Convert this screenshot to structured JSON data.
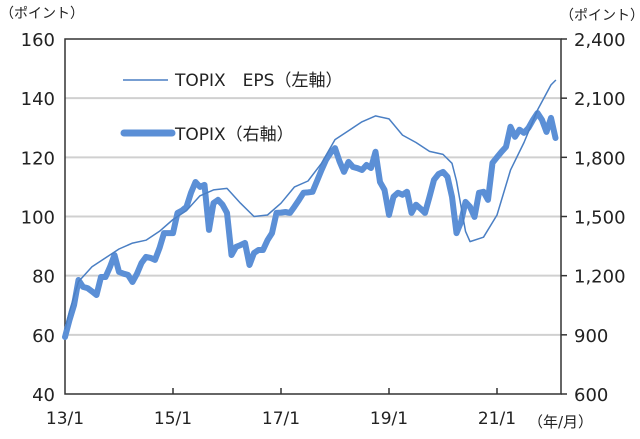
{
  "chart_data": {
    "type": "line",
    "title": "",
    "left_axis": {
      "unit_label": "（ポイント）",
      "ylim": [
        40,
        160
      ],
      "ticks": [
        "40",
        "60",
        "80",
        "100",
        "120",
        "140",
        "160"
      ]
    },
    "right_axis": {
      "unit_label": "（ポイント）",
      "ylim": [
        600,
        2400
      ],
      "ticks": [
        "600",
        "900",
        "1,200",
        "1,500",
        "1,800",
        "2,100",
        "2,400"
      ]
    },
    "x_axis": {
      "unit_label": "（年/月）",
      "ticks": [
        "13/1",
        "15/1",
        "17/1",
        "19/1",
        "21/1"
      ],
      "range": [
        "13/1",
        "22/3"
      ]
    },
    "grid": true,
    "legend": {
      "placement": "top-left",
      "entries": [
        "TOPIX　EPS（左軸）",
        "TOPIX（右軸）"
      ]
    },
    "series": [
      {
        "name": "TOPIX　EPS（左軸）",
        "axis": "left",
        "color": "#4a7fc4",
        "points": [
          [
            "13/1",
            62
          ],
          [
            "13/2",
            68
          ],
          [
            "13/4",
            78
          ],
          [
            "13/7",
            83
          ],
          [
            "13/10",
            86
          ],
          [
            "14/1",
            89
          ],
          [
            "14/4",
            91
          ],
          [
            "14/7",
            92
          ],
          [
            "14/10",
            95
          ],
          [
            "15/1",
            99
          ],
          [
            "15/4",
            102
          ],
          [
            "15/7",
            107
          ],
          [
            "15/10",
            109
          ],
          [
            "16/1",
            109.5
          ],
          [
            "16/4",
            104.5
          ],
          [
            "16/7",
            100
          ],
          [
            "16/10",
            100.5
          ],
          [
            "17/1",
            104.5
          ],
          [
            "17/4",
            110
          ],
          [
            "17/7",
            112
          ],
          [
            "17/10",
            118
          ],
          [
            "18/1",
            126
          ],
          [
            "18/4",
            129
          ],
          [
            "18/7",
            132
          ],
          [
            "18/10",
            134
          ],
          [
            "19/1",
            133
          ],
          [
            "19/4",
            127.5
          ],
          [
            "19/7",
            125
          ],
          [
            "19/10",
            122
          ],
          [
            "20/1",
            121
          ],
          [
            "20/3",
            118
          ],
          [
            "20/4",
            112
          ],
          [
            "20/6",
            95
          ],
          [
            "20/7",
            91.5
          ],
          [
            "20/10",
            93
          ],
          [
            "21/1",
            100.5
          ],
          [
            "21/4",
            115.7
          ],
          [
            "21/7",
            125
          ],
          [
            "21/10",
            136
          ],
          [
            "22/1",
            144.5
          ],
          [
            "22/2",
            146
          ]
        ]
      },
      {
        "name": "TOPIX（右軸）",
        "axis": "right",
        "color": "#5b8fd6",
        "points": [
          [
            "13/1",
            889
          ],
          [
            "13/2",
            975
          ],
          [
            "13/3",
            1050
          ],
          [
            "13/4",
            1178
          ],
          [
            "13/5",
            1143
          ],
          [
            "13/6",
            1137
          ],
          [
            "13/7",
            1120
          ],
          [
            "13/8",
            1102
          ],
          [
            "13/9",
            1193
          ],
          [
            "13/10",
            1193
          ],
          [
            "13/11",
            1244
          ],
          [
            "13/12",
            1305
          ],
          [
            "14/1",
            1219
          ],
          [
            "14/2",
            1210
          ],
          [
            "14/3",
            1204
          ],
          [
            "14/4",
            1168
          ],
          [
            "14/5",
            1210
          ],
          [
            "14/6",
            1264
          ],
          [
            "14/7",
            1295
          ],
          [
            "14/8",
            1290
          ],
          [
            "14/9",
            1280
          ],
          [
            "14/10",
            1340
          ],
          [
            "14/11",
            1416
          ],
          [
            "14/12",
            1416
          ],
          [
            "15/1",
            1416
          ],
          [
            "15/2",
            1518
          ],
          [
            "15/3",
            1530
          ],
          [
            "15/4",
            1549
          ],
          [
            "15/5",
            1620
          ],
          [
            "15/6",
            1675
          ],
          [
            "15/7",
            1650
          ],
          [
            "15/8",
            1660
          ],
          [
            "15/9",
            1432
          ],
          [
            "15/10",
            1568
          ],
          [
            "15/11",
            1584
          ],
          [
            "15/12",
            1560
          ],
          [
            "16/1",
            1518
          ],
          [
            "16/2",
            1305
          ],
          [
            "16/3",
            1346
          ],
          [
            "16/4",
            1355
          ],
          [
            "16/5",
            1366
          ],
          [
            "16/6",
            1254
          ],
          [
            "16/7",
            1315
          ],
          [
            "16/8",
            1330
          ],
          [
            "16/9",
            1330
          ],
          [
            "16/10",
            1380
          ],
          [
            "16/11",
            1416
          ],
          [
            "16/12",
            1518
          ],
          [
            "17/1",
            1520
          ],
          [
            "17/2",
            1523
          ],
          [
            "17/3",
            1518
          ],
          [
            "17/4",
            1550
          ],
          [
            "17/5",
            1584
          ],
          [
            "17/6",
            1620
          ],
          [
            "17/7",
            1622
          ],
          [
            "17/8",
            1625
          ],
          [
            "17/9",
            1680
          ],
          [
            "17/10",
            1736
          ],
          [
            "17/11",
            1787
          ],
          [
            "17/12",
            1822
          ],
          [
            "18/1",
            1847
          ],
          [
            "18/2",
            1780
          ],
          [
            "18/3",
            1726
          ],
          [
            "18/4",
            1777
          ],
          [
            "18/5",
            1751
          ],
          [
            "18/6",
            1745
          ],
          [
            "18/7",
            1736
          ],
          [
            "18/8",
            1761
          ],
          [
            "18/9",
            1746
          ],
          [
            "18/10",
            1828
          ],
          [
            "18/11",
            1675
          ],
          [
            "18/12",
            1635
          ],
          [
            "19/1",
            1508
          ],
          [
            "19/2",
            1600
          ],
          [
            "19/3",
            1620
          ],
          [
            "19/4",
            1610
          ],
          [
            "19/5",
            1625
          ],
          [
            "19/6",
            1518
          ],
          [
            "19/7",
            1560
          ],
          [
            "19/8",
            1540
          ],
          [
            "19/9",
            1518
          ],
          [
            "19/10",
            1600
          ],
          [
            "19/11",
            1686
          ],
          [
            "19/12",
            1715
          ],
          [
            "20/1",
            1726
          ],
          [
            "20/2",
            1701
          ],
          [
            "20/3",
            1600
          ],
          [
            "20/4",
            1416
          ],
          [
            "20/5",
            1472
          ],
          [
            "20/6",
            1574
          ],
          [
            "20/7",
            1549
          ],
          [
            "20/8",
            1498
          ],
          [
            "20/9",
            1620
          ],
          [
            "20/10",
            1625
          ],
          [
            "20/11",
            1584
          ],
          [
            "20/12",
            1772
          ],
          [
            "21/1",
            1800
          ],
          [
            "21/2",
            1828
          ],
          [
            "21/3",
            1853
          ],
          [
            "21/4",
            1955
          ],
          [
            "21/5",
            1904
          ],
          [
            "21/6",
            1940
          ],
          [
            "21/7",
            1924
          ],
          [
            "21/8",
            1950
          ],
          [
            "21/9",
            1990
          ],
          [
            "21/10",
            2025
          ],
          [
            "21/11",
            1990
          ],
          [
            "21/12",
            1929
          ],
          [
            "22/1",
            2000
          ],
          [
            "22/2",
            1898
          ]
        ]
      }
    ]
  }
}
